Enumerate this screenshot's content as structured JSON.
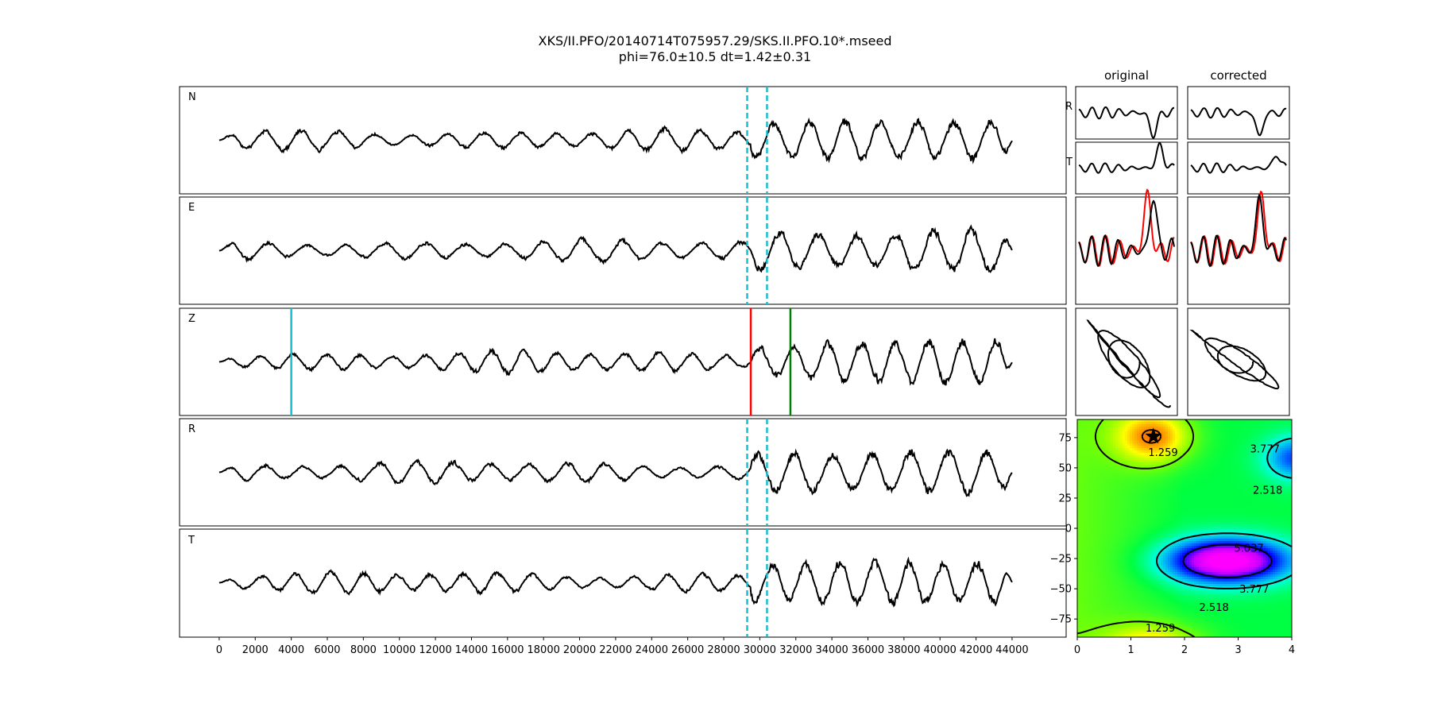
{
  "title_line1": "XKS/II.PFO/20140714T075957.29/SKS.II.PFO.10*.mseed",
  "title_line2": "phi=76.0±10.5 dt=1.42±0.31",
  "colors": {
    "trace": "#000000",
    "pick_cyan": "#17becf",
    "pick_red": "#ff0000",
    "pick_green": "#008000",
    "window": "#17becf",
    "overlay_red": "#ff0000"
  },
  "chart_data": [
    {
      "type": "line",
      "name": "waveforms",
      "panels": [
        {
          "label": "N",
          "window_dashed": [
            29300,
            30400
          ]
        },
        {
          "label": "E",
          "window_dashed": [
            29300,
            30400
          ]
        },
        {
          "label": "Z",
          "picks": [
            {
              "x": 4000,
              "color": "cyan"
            },
            {
              "x": 29500,
              "color": "red"
            },
            {
              "x": 31700,
              "color": "green"
            }
          ]
        },
        {
          "label": "R",
          "window_dashed": [
            29300,
            30400
          ]
        },
        {
          "label": "T",
          "window_dashed": [
            29300,
            30400
          ]
        }
      ],
      "xlim": [
        -2200,
        47000
      ],
      "signal_range": [
        0,
        44000
      ],
      "x_ticks": [
        "0",
        "2000",
        "4000",
        "6000",
        "8000",
        "10000",
        "12000",
        "14000",
        "16000",
        "18000",
        "20000",
        "22000",
        "24000",
        "26000",
        "28000",
        "30000",
        "32000",
        "34000",
        "36000",
        "38000",
        "40000",
        "42000",
        "44000"
      ],
      "x_tick_values": [
        0,
        2000,
        4000,
        6000,
        8000,
        10000,
        12000,
        14000,
        16000,
        18000,
        20000,
        22000,
        24000,
        26000,
        28000,
        30000,
        32000,
        34000,
        36000,
        38000,
        40000,
        42000,
        44000
      ],
      "grid": false
    },
    {
      "type": "line",
      "name": "window-comparison",
      "columns": [
        "original",
        "corrected"
      ],
      "row_labels": [
        "R",
        "T"
      ]
    },
    {
      "type": "heatmap",
      "name": "error-surface",
      "xlim": [
        0,
        4
      ],
      "ylim": [
        -90,
        90
      ],
      "x_ticks": [
        "0",
        "1",
        "2",
        "3",
        "4"
      ],
      "x_tick_values": [
        0,
        1,
        2,
        3,
        4
      ],
      "y_ticks": [
        "75",
        "50",
        "25",
        "0",
        "−25",
        "−50",
        "−75"
      ],
      "y_tick_values": [
        75,
        50,
        25,
        0,
        -25,
        -50,
        -75
      ],
      "best": {
        "dt": 1.42,
        "phi": 76.0
      },
      "contour_labels": [
        {
          "text": "1.259",
          "dt": 1.6,
          "phi": 62
        },
        {
          "text": "3.777",
          "dt": 3.5,
          "phi": 65
        },
        {
          "text": "2.518",
          "dt": 3.55,
          "phi": 31
        },
        {
          "text": "5.037",
          "dt": 3.2,
          "phi": -17
        },
        {
          "text": "3.777",
          "dt": 3.3,
          "phi": -51
        },
        {
          "text": "2.518",
          "dt": 2.55,
          "phi": -66
        },
        {
          "text": "1.259",
          "dt": 1.55,
          "phi": -83
        }
      ]
    }
  ]
}
